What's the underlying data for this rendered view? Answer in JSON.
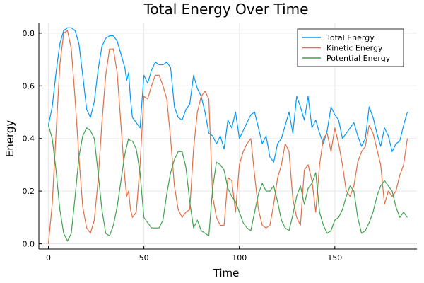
{
  "chart_data": {
    "type": "line",
    "title": "Total Energy Over Time",
    "xlabel": "Time",
    "ylabel": "Energy",
    "xlim": [
      -5,
      193
    ],
    "ylim": [
      -0.02,
      0.84
    ],
    "xticks": [
      0,
      50,
      100,
      150
    ],
    "yticks": [
      0.0,
      0.2,
      0.4,
      0.6,
      0.8
    ],
    "grid": true,
    "legend_position": "top-right",
    "series": [
      {
        "name": "Total Energy",
        "color": "#009AFA",
        "x": [
          0,
          2,
          4,
          6,
          8,
          10,
          12,
          14,
          16,
          18,
          20,
          22,
          24,
          26,
          28,
          30,
          32,
          34,
          36,
          38,
          40,
          41,
          42,
          43,
          44,
          46,
          48,
          50,
          52,
          54,
          56,
          58,
          60,
          62,
          64,
          66,
          68,
          70,
          72,
          74,
          76,
          78,
          80,
          82,
          84,
          86,
          88,
          90,
          92,
          94,
          96,
          98,
          100,
          102,
          104,
          106,
          108,
          110,
          112,
          114,
          116,
          118,
          120,
          122,
          124,
          126,
          128,
          130,
          132,
          134,
          136,
          138,
          140,
          142,
          144,
          146,
          148,
          150,
          152,
          154,
          156,
          158,
          160,
          162,
          164,
          166,
          168,
          170,
          172,
          174,
          176,
          178,
          180,
          182,
          184,
          186,
          188
        ],
        "y": [
          0.45,
          0.52,
          0.65,
          0.76,
          0.81,
          0.82,
          0.82,
          0.81,
          0.76,
          0.64,
          0.51,
          0.48,
          0.54,
          0.66,
          0.75,
          0.78,
          0.79,
          0.79,
          0.77,
          0.72,
          0.67,
          0.62,
          0.65,
          0.55,
          0.48,
          0.46,
          0.44,
          0.64,
          0.61,
          0.66,
          0.69,
          0.68,
          0.68,
          0.69,
          0.67,
          0.52,
          0.48,
          0.47,
          0.51,
          0.53,
          0.64,
          0.59,
          0.56,
          0.5,
          0.42,
          0.41,
          0.38,
          0.41,
          0.36,
          0.47,
          0.44,
          0.5,
          0.4,
          0.43,
          0.46,
          0.49,
          0.5,
          0.44,
          0.38,
          0.41,
          0.33,
          0.31,
          0.38,
          0.4,
          0.45,
          0.5,
          0.42,
          0.56,
          0.52,
          0.47,
          0.56,
          0.44,
          0.47,
          0.42,
          0.38,
          0.43,
          0.52,
          0.49,
          0.47,
          0.4,
          0.42,
          0.44,
          0.46,
          0.41,
          0.37,
          0.4,
          0.52,
          0.48,
          0.42,
          0.37,
          0.44,
          0.41,
          0.35,
          0.38,
          0.39,
          0.45,
          0.5
        ]
      },
      {
        "name": "Kinetic Energy",
        "color": "#E26F46",
        "x": [
          0,
          2,
          4,
          6,
          8,
          10,
          12,
          14,
          16,
          18,
          20,
          22,
          24,
          26,
          28,
          30,
          32,
          34,
          36,
          38,
          40,
          41,
          42,
          43,
          44,
          46,
          48,
          50,
          52,
          54,
          56,
          58,
          60,
          62,
          64,
          66,
          68,
          70,
          72,
          74,
          76,
          78,
          80,
          82,
          84,
          86,
          88,
          90,
          92,
          94,
          96,
          98,
          100,
          102,
          104,
          106,
          108,
          110,
          112,
          114,
          116,
          118,
          120,
          122,
          124,
          126,
          128,
          130,
          132,
          134,
          136,
          138,
          140,
          142,
          144,
          146,
          148,
          150,
          152,
          154,
          156,
          158,
          160,
          162,
          164,
          166,
          168,
          170,
          172,
          174,
          176,
          178,
          180,
          182,
          184,
          186,
          188
        ],
        "y": [
          0.0,
          0.15,
          0.42,
          0.68,
          0.8,
          0.81,
          0.74,
          0.55,
          0.33,
          0.14,
          0.06,
          0.04,
          0.09,
          0.24,
          0.46,
          0.64,
          0.74,
          0.74,
          0.65,
          0.45,
          0.25,
          0.18,
          0.2,
          0.13,
          0.1,
          0.12,
          0.3,
          0.56,
          0.55,
          0.6,
          0.64,
          0.64,
          0.6,
          0.55,
          0.4,
          0.22,
          0.13,
          0.1,
          0.12,
          0.13,
          0.36,
          0.5,
          0.56,
          0.58,
          0.55,
          0.18,
          0.1,
          0.07,
          0.07,
          0.25,
          0.24,
          0.12,
          0.3,
          0.35,
          0.38,
          0.4,
          0.26,
          0.13,
          0.07,
          0.06,
          0.07,
          0.15,
          0.25,
          0.3,
          0.38,
          0.35,
          0.17,
          0.1,
          0.07,
          0.28,
          0.3,
          0.24,
          0.12,
          0.3,
          0.4,
          0.42,
          0.35,
          0.44,
          0.38,
          0.3,
          0.2,
          0.18,
          0.22,
          0.31,
          0.35,
          0.37,
          0.45,
          0.42,
          0.36,
          0.3,
          0.15,
          0.2,
          0.18,
          0.2,
          0.26,
          0.3,
          0.4
        ]
      },
      {
        "name": "Potential Energy",
        "color": "#3EA44E",
        "x": [
          0,
          2,
          4,
          6,
          8,
          10,
          12,
          14,
          16,
          18,
          20,
          22,
          24,
          26,
          28,
          30,
          32,
          34,
          36,
          38,
          40,
          41,
          42,
          43,
          44,
          46,
          48,
          50,
          52,
          54,
          56,
          58,
          60,
          62,
          64,
          66,
          68,
          70,
          72,
          74,
          76,
          78,
          80,
          82,
          84,
          86,
          88,
          90,
          92,
          94,
          96,
          98,
          100,
          102,
          104,
          106,
          108,
          110,
          112,
          114,
          116,
          118,
          120,
          122,
          124,
          126,
          128,
          130,
          132,
          134,
          136,
          138,
          140,
          142,
          144,
          146,
          148,
          150,
          152,
          154,
          156,
          158,
          160,
          162,
          164,
          166,
          168,
          170,
          172,
          174,
          176,
          178,
          180,
          182,
          184,
          186,
          188
        ],
        "y": [
          0.45,
          0.4,
          0.28,
          0.13,
          0.04,
          0.01,
          0.04,
          0.18,
          0.33,
          0.41,
          0.44,
          0.43,
          0.4,
          0.27,
          0.13,
          0.04,
          0.03,
          0.07,
          0.14,
          0.24,
          0.34,
          0.37,
          0.4,
          0.39,
          0.39,
          0.36,
          0.27,
          0.1,
          0.08,
          0.06,
          0.06,
          0.06,
          0.09,
          0.19,
          0.27,
          0.32,
          0.35,
          0.35,
          0.29,
          0.16,
          0.06,
          0.09,
          0.05,
          0.04,
          0.03,
          0.21,
          0.31,
          0.3,
          0.28,
          0.21,
          0.18,
          0.16,
          0.12,
          0.08,
          0.06,
          0.05,
          0.12,
          0.19,
          0.23,
          0.2,
          0.2,
          0.22,
          0.16,
          0.09,
          0.06,
          0.05,
          0.11,
          0.18,
          0.22,
          0.15,
          0.21,
          0.23,
          0.27,
          0.12,
          0.07,
          0.04,
          0.05,
          0.09,
          0.1,
          0.13,
          0.18,
          0.22,
          0.2,
          0.1,
          0.04,
          0.05,
          0.08,
          0.12,
          0.18,
          0.22,
          0.24,
          0.22,
          0.2,
          0.14,
          0.1,
          0.12,
          0.1
        ]
      }
    ]
  }
}
